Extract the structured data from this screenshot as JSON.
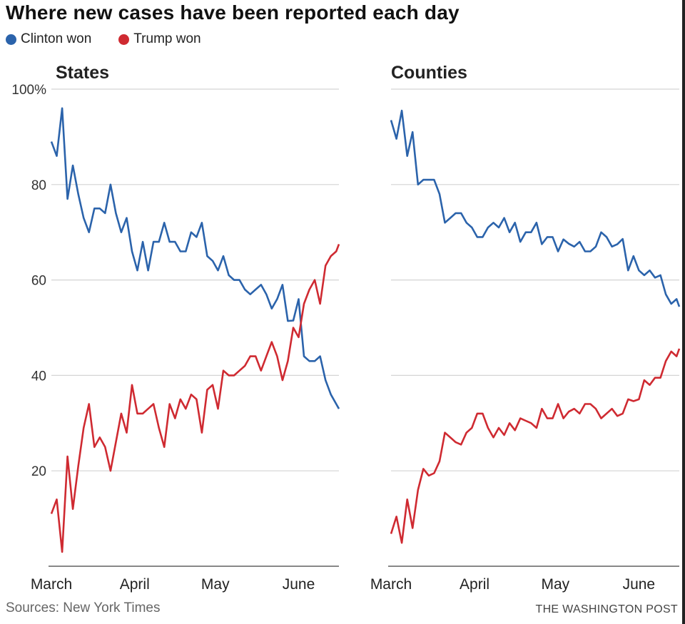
{
  "title": "Where new cases have been reported each day",
  "legend": [
    {
      "label": "Clinton won",
      "color": "#2b63ab"
    },
    {
      "label": "Trump won",
      "color": "#cf2a31"
    }
  ],
  "footer": {
    "source": "Sources: New York Times",
    "credit": "THE WASHINGTON POST"
  },
  "chart_data": [
    {
      "type": "line",
      "title": "States",
      "ylim": [
        0,
        100
      ],
      "yticks": [
        20,
        40,
        60,
        80,
        100
      ],
      "ytick_labels": [
        "20",
        "40",
        "60",
        "80",
        "100%"
      ],
      "xticks": [
        "Mar 1",
        "Apr 1",
        "May 1",
        "Jun 1"
      ],
      "xtick_labels": [
        "March",
        "April",
        "May",
        "June"
      ],
      "grid": true,
      "x": [
        "Mar 1",
        "Mar 3",
        "Mar 5",
        "Mar 7",
        "Mar 9",
        "Mar 11",
        "Mar 13",
        "Mar 15",
        "Mar 17",
        "Mar 19",
        "Mar 21",
        "Mar 23",
        "Mar 25",
        "Mar 27",
        "Mar 29",
        "Mar 31",
        "Apr 2",
        "Apr 4",
        "Apr 6",
        "Apr 8",
        "Apr 10",
        "Apr 12",
        "Apr 14",
        "Apr 16",
        "Apr 18",
        "Apr 20",
        "Apr 22",
        "Apr 24",
        "Apr 26",
        "Apr 28",
        "Apr 30",
        "May 2",
        "May 4",
        "May 6",
        "May 8",
        "May 10",
        "May 12",
        "May 14",
        "May 16",
        "May 18",
        "May 20",
        "May 22",
        "May 24",
        "May 26",
        "May 28",
        "May 30",
        "Jun 1",
        "Jun 3",
        "Jun 5",
        "Jun 7",
        "Jun 9",
        "Jun 11",
        "Jun 13",
        "Jun 15",
        "Jun 16"
      ],
      "series": [
        {
          "name": "Clinton won",
          "color": "#2b63ab",
          "values": [
            89,
            86,
            96,
            77,
            84,
            78,
            73,
            70,
            75,
            75,
            74,
            80,
            74,
            70,
            73,
            66,
            62,
            68,
            62,
            68,
            68,
            72,
            68,
            68,
            66,
            66,
            70,
            69,
            72,
            65,
            64,
            62,
            65,
            61,
            60,
            60,
            58,
            57,
            58,
            59,
            57,
            54,
            56,
            59,
            51.4,
            51.5,
            56,
            44,
            43,
            43,
            44,
            39,
            36,
            34,
            33
          ]
        },
        {
          "name": "Trump won",
          "color": "#cf2a31",
          "values": [
            11,
            14,
            3,
            23,
            12,
            21,
            29,
            34,
            25,
            27,
            25,
            20,
            26,
            32,
            28,
            38,
            32,
            32,
            33,
            34,
            29,
            25,
            34,
            31,
            35,
            33,
            36,
            35,
            28,
            37,
            38,
            33,
            41,
            40,
            40,
            41,
            42,
            44,
            44,
            41,
            44,
            47,
            44,
            39,
            43,
            50,
            48,
            55,
            58,
            60,
            55,
            63,
            65,
            66,
            67.5
          ]
        }
      ]
    },
    {
      "type": "line",
      "title": "Counties",
      "ylim": [
        0,
        100
      ],
      "yticks": [
        20,
        40,
        60,
        80,
        100
      ],
      "xticks": [
        "Mar 1",
        "Apr 1",
        "May 1",
        "Jun 1"
      ],
      "xtick_labels": [
        "March",
        "April",
        "May",
        "June"
      ],
      "grid": true,
      "x": [
        "Mar 1",
        "Mar 3",
        "Mar 5",
        "Mar 7",
        "Mar 9",
        "Mar 11",
        "Mar 13",
        "Mar 15",
        "Mar 17",
        "Mar 19",
        "Mar 21",
        "Mar 23",
        "Mar 25",
        "Mar 27",
        "Mar 29",
        "Mar 31",
        "Apr 2",
        "Apr 4",
        "Apr 6",
        "Apr 8",
        "Apr 10",
        "Apr 12",
        "Apr 14",
        "Apr 16",
        "Apr 18",
        "Apr 20",
        "Apr 22",
        "Apr 24",
        "Apr 26",
        "Apr 28",
        "Apr 30",
        "May 2",
        "May 4",
        "May 6",
        "May 8",
        "May 10",
        "May 12",
        "May 14",
        "May 16",
        "May 18",
        "May 20",
        "May 22",
        "May 24",
        "May 26",
        "May 28",
        "May 30",
        "Jun 1",
        "Jun 3",
        "Jun 5",
        "Jun 7",
        "Jun 9",
        "Jun 11",
        "Jun 13",
        "Jun 15",
        "Jun 16"
      ],
      "series": [
        {
          "name": "Clinton won",
          "color": "#2b63ab",
          "values": [
            93.5,
            89.6,
            95.5,
            86,
            91,
            80,
            81,
            81,
            81,
            78,
            72,
            73,
            74,
            74,
            72,
            71,
            69,
            69,
            71,
            72,
            71,
            73,
            70,
            72,
            68,
            70,
            70,
            72,
            67.5,
            69,
            69,
            66,
            68.5,
            67.6,
            67,
            68,
            66,
            66,
            67,
            70,
            69,
            67,
            67.5,
            68.6,
            62,
            65,
            62,
            61,
            62,
            60.5,
            61,
            57,
            55,
            56,
            54.4
          ]
        },
        {
          "name": "Trump won",
          "color": "#cf2a31",
          "values": [
            6.8,
            10.4,
            4.9,
            14,
            8,
            16,
            20.4,
            19,
            19.5,
            22,
            28,
            27,
            26,
            25.5,
            28,
            29,
            32,
            32,
            29,
            27,
            29,
            27.5,
            30,
            28.5,
            31,
            30.5,
            30,
            29,
            33,
            31,
            31,
            34,
            31,
            32.4,
            33,
            32,
            34,
            34,
            33,
            31,
            32,
            33,
            31.5,
            32,
            35,
            34.6,
            35,
            39,
            38,
            39.5,
            39.5,
            43,
            45,
            44,
            45.6
          ]
        }
      ]
    }
  ]
}
